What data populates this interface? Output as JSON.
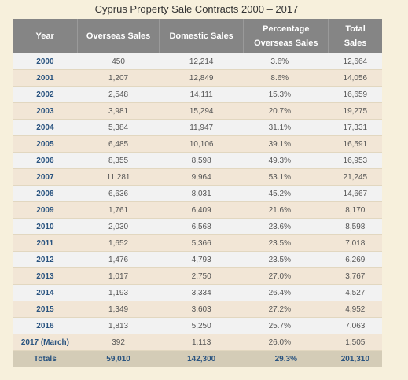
{
  "chart_data": {
    "type": "table",
    "title": "Cyprus Property Sale Contracts 2000 – 2017",
    "columns": [
      "Year",
      "Overseas Sales",
      "Domestic Sales",
      "Percentage Overseas Sales",
      "Total Sales"
    ],
    "header_lines": [
      [
        "Year"
      ],
      [
        "Overseas Sales"
      ],
      [
        "Domestic Sales"
      ],
      [
        "Percentage",
        "Overseas Sales"
      ],
      [
        "Total",
        "Sales"
      ]
    ],
    "rows": [
      [
        "2000",
        "450",
        "12,214",
        "3.6%",
        "12,664"
      ],
      [
        "2001",
        "1,207",
        "12,849",
        "8.6%",
        "14,056"
      ],
      [
        "2002",
        "2,548",
        "14,111",
        "15.3%",
        "16,659"
      ],
      [
        "2003",
        "3,981",
        "15,294",
        "20.7%",
        "19,275"
      ],
      [
        "2004",
        "5,384",
        "11,947",
        "31.1%",
        "17,331"
      ],
      [
        "2005",
        "6,485",
        "10,106",
        "39.1%",
        "16,591"
      ],
      [
        "2006",
        "8,355",
        "8,598",
        "49.3%",
        "16,953"
      ],
      [
        "2007",
        "11,281",
        "9,964",
        "53.1%",
        "21,245"
      ],
      [
        "2008",
        "6,636",
        "8,031",
        "45.2%",
        "14,667"
      ],
      [
        "2009",
        "1,761",
        "6,409",
        "21.6%",
        "8,170"
      ],
      [
        "2010",
        "2,030",
        "6,568",
        "23.6%",
        "8,598"
      ],
      [
        "2011",
        "1,652",
        "5,366",
        "23.5%",
        "7,018"
      ],
      [
        "2012",
        "1,476",
        "4,793",
        "23.5%",
        "6,269"
      ],
      [
        "2013",
        "1,017",
        "2,750",
        "27.0%",
        "3,767"
      ],
      [
        "2014",
        "1,193",
        "3,334",
        "26.4%",
        "4,527"
      ],
      [
        "2015",
        "1,349",
        "3,603",
        "27.2%",
        "4,952"
      ],
      [
        "2016",
        "1,813",
        "5,250",
        "25.7%",
        "7,063"
      ],
      [
        "2017 (March)",
        "392",
        "1,113",
        "26.0%",
        "1,505"
      ]
    ],
    "totals": [
      "Totals",
      "59,010",
      "142,300",
      "29.3%",
      "201,310"
    ]
  },
  "colors": {
    "header_bg": "#858585",
    "row_odd": "#f2f2f2",
    "row_even": "#f2e6d6",
    "totals_bg": "#d4ccb7",
    "year_text": "#2a5480",
    "page_bg": "#f7f0dc"
  }
}
